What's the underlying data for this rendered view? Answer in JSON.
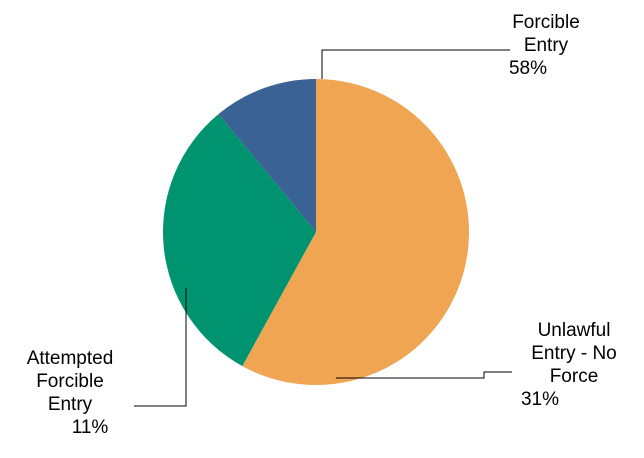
{
  "chart_data": {
    "type": "pie",
    "title": "",
    "slices": [
      {
        "label": [
          "Forcible",
          "Entry"
        ],
        "pct_label": "58%",
        "value": 58,
        "color": "#EFA552"
      },
      {
        "label": [
          "Unlawful",
          "Entry - No",
          "Force"
        ],
        "pct_label": "31%",
        "value": 31,
        "color": "#009370"
      },
      {
        "label": [
          "Attempted",
          "Forcible",
          "Entry"
        ],
        "pct_label": "11%",
        "value": 11,
        "color": "#3A6294"
      }
    ],
    "legend": "none"
  }
}
